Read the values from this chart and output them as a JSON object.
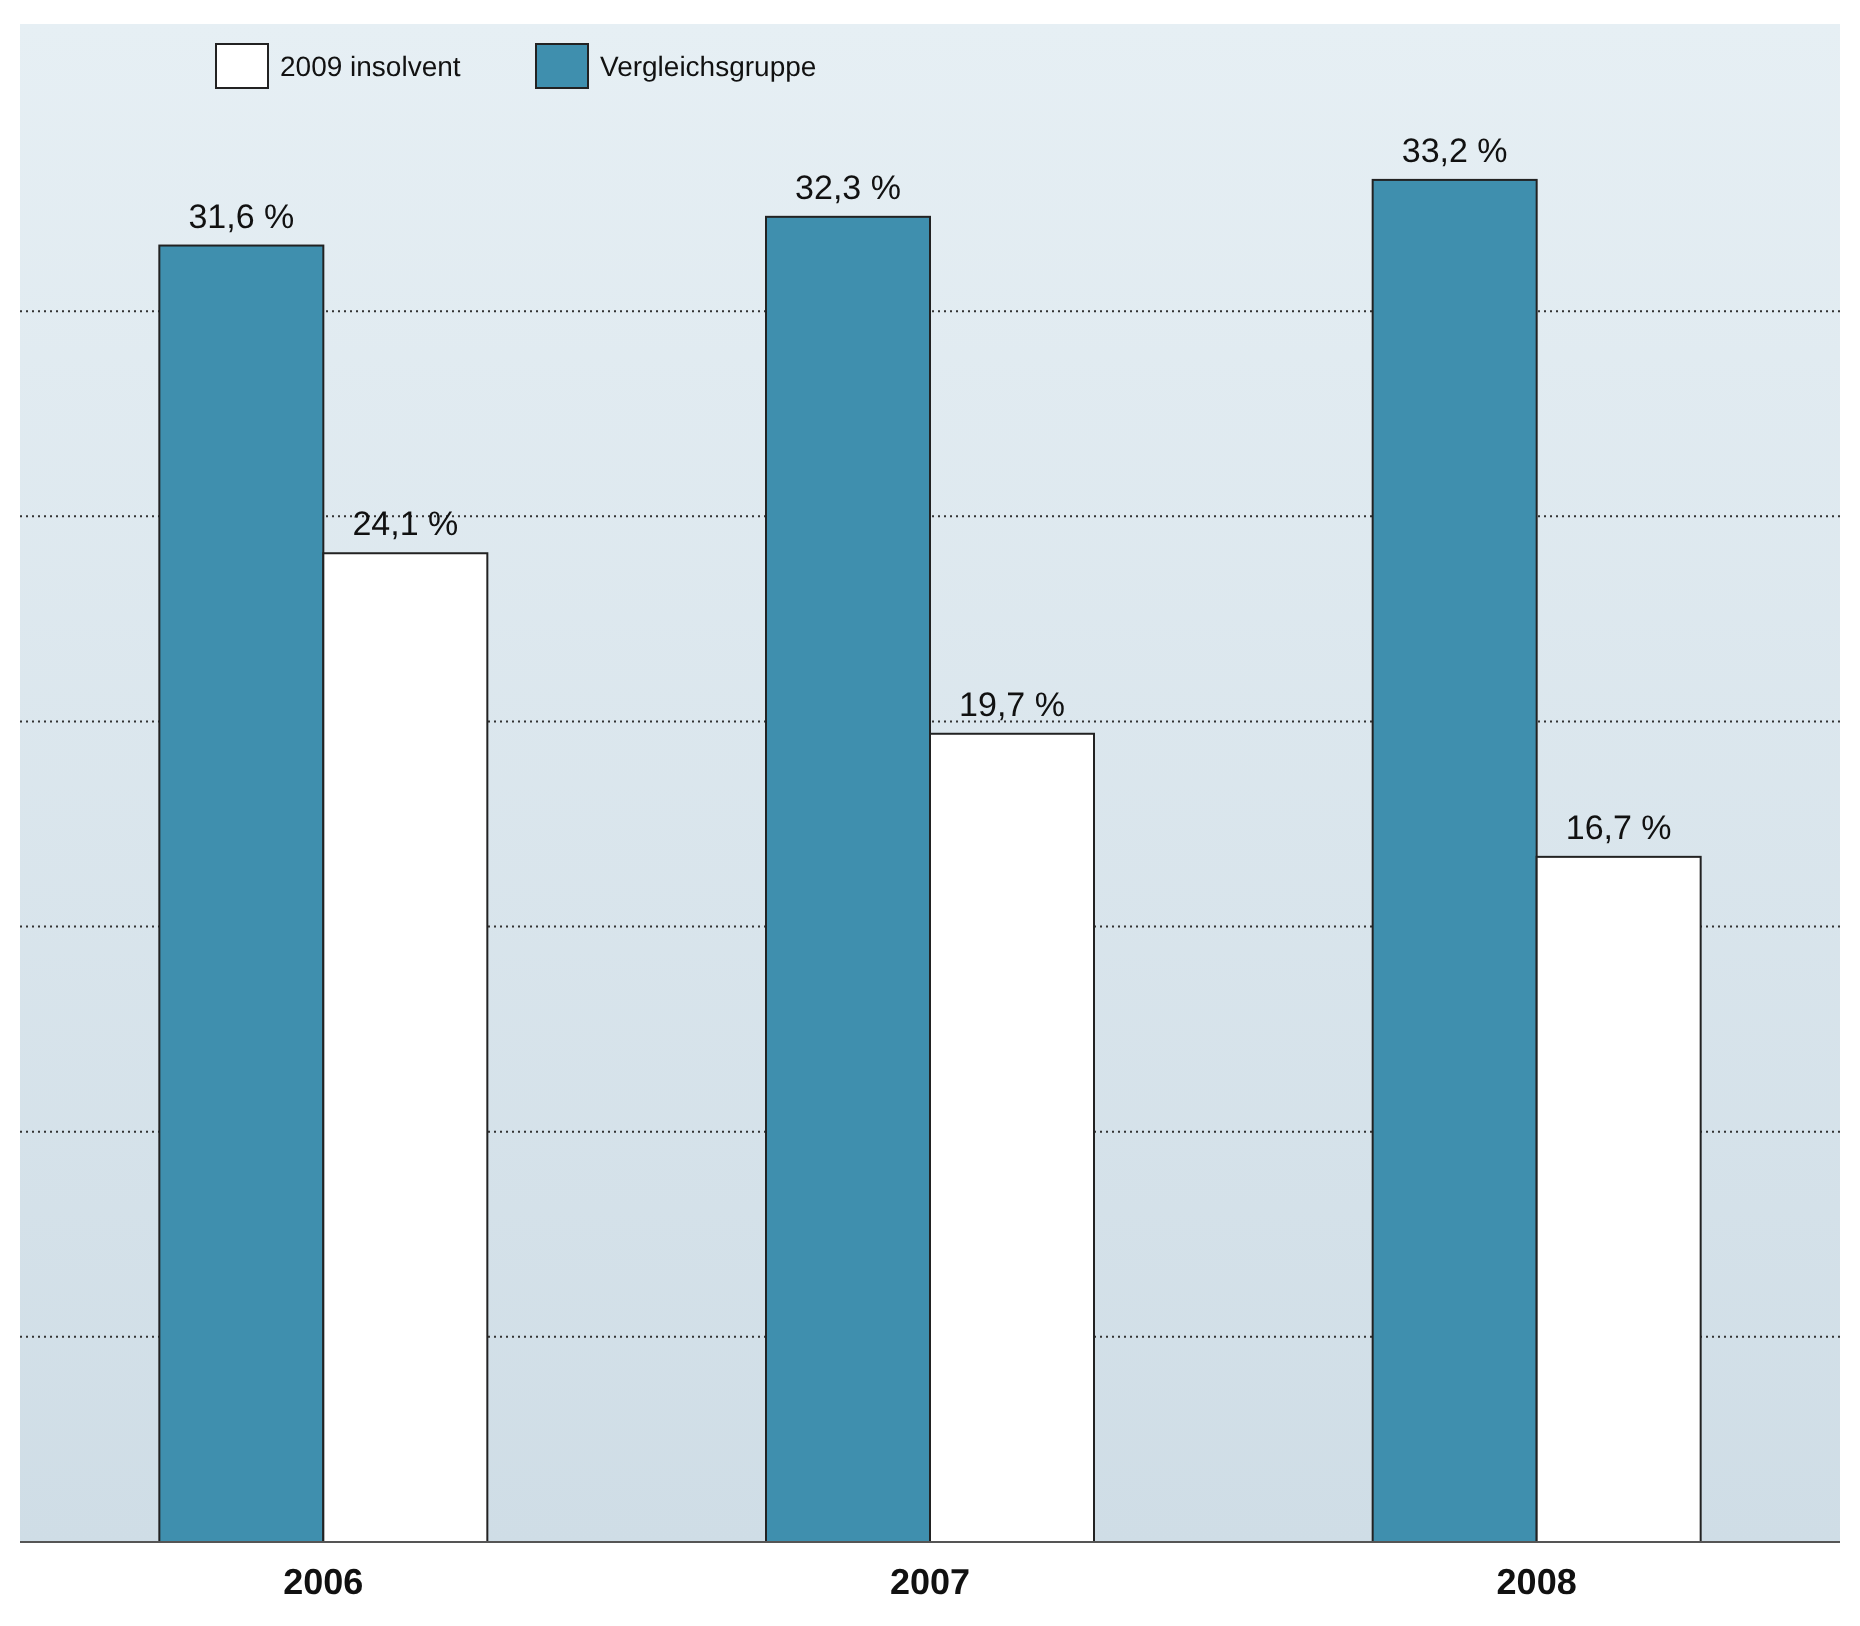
{
  "chart_data": {
    "type": "bar",
    "categories": [
      "2006",
      "2007",
      "2008"
    ],
    "series": [
      {
        "name": "Vergleichsgruppe",
        "color": "#3f8fae",
        "values": [
          31.6,
          32.3,
          33.2
        ],
        "value_labels": [
          "31,6 %",
          "32,3 %",
          "33,2 %"
        ]
      },
      {
        "name": "2009 insolvent",
        "color": "#ffffff",
        "values": [
          24.1,
          19.7,
          16.7
        ],
        "value_labels": [
          "24,1 %",
          "19,7 %",
          "16,7 %"
        ]
      }
    ],
    "ylim": [
      0,
      37
    ],
    "yticks": [
      {
        "value": 5,
        "label": null
      },
      {
        "value": 10,
        "label": null
      },
      {
        "value": 15,
        "label": null
      },
      {
        "value": 20,
        "label": null
      },
      {
        "value": 25,
        "label": null
      },
      {
        "value": 30,
        "label": null
      }
    ],
    "grid": "y",
    "legend": "top left",
    "tick_labels": "x"
  }
}
